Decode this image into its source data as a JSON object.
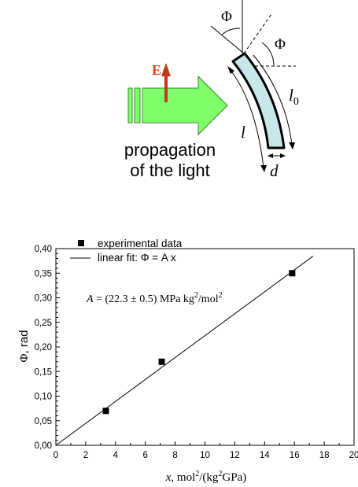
{
  "diagram": {
    "caption_line1": "propagation",
    "caption_line2": "of the light",
    "field_label": "E",
    "angle_label": "Φ",
    "length_label": "l",
    "length0_label": "l",
    "length0_sub": "0",
    "thickness_label": "d",
    "colors": {
      "arrow_fill": "#7fff6a",
      "arrow_stroke": "#3a8a2a",
      "field_arrow": "#c0391b",
      "field_label": "#e0401a",
      "slab_fill": "#c7e7ea"
    }
  },
  "chart_data": {
    "type": "scatter",
    "x_range": [
      0,
      20
    ],
    "y_range": [
      0,
      0.4
    ],
    "x_ticks": [
      "0",
      "2",
      "4",
      "6",
      "8",
      "10",
      "12",
      "14",
      "16",
      "18",
      "20"
    ],
    "y_ticks": [
      "0,00",
      "0,05",
      "0,10",
      "0,15",
      "0,20",
      "0,25",
      "0,30",
      "0,35",
      "0,40"
    ],
    "xlabel": "x, mol2/(kg2GPa)",
    "ylabel": "Φ, rad",
    "legend": {
      "placement": "top-left",
      "items": [
        "experimental data",
        "linear fit: Φ = A x"
      ]
    },
    "annotation": "A = (22.3 ± 0.5) MPa kg2/mol2",
    "series": [
      {
        "name": "experimental data",
        "marker": "square",
        "points": [
          {
            "x": 3.35,
            "y": 0.07
          },
          {
            "x": 7.1,
            "y": 0.17
          },
          {
            "x": 15.85,
            "y": 0.35
          }
        ]
      },
      {
        "name": "linear fit: Φ = A x",
        "kind": "line",
        "slope": 0.0223,
        "x": [
          0,
          17.25
        ]
      }
    ]
  }
}
